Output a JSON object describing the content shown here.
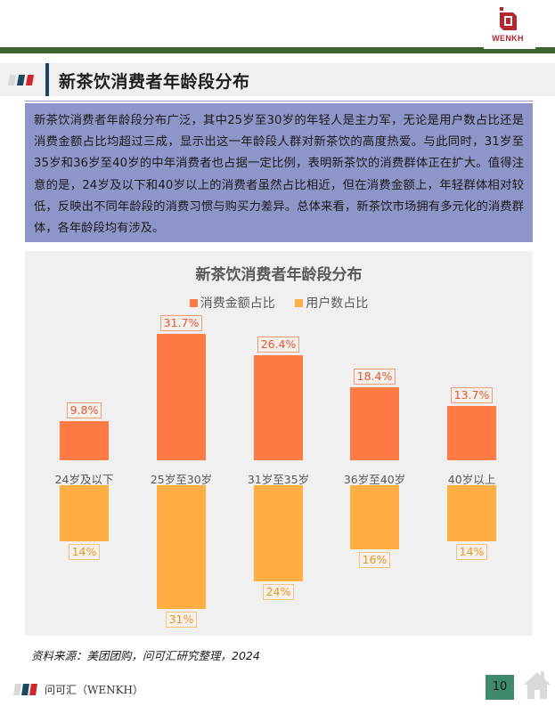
{
  "header": {
    "logo_text": "WENKH",
    "page_title": "新茶饮消费者年龄段分布"
  },
  "summary": {
    "text": "新茶饮消费者年龄段分布广泛，其中25岁至30岁的年轻人是主力军，无论是用户数占比还是消费金额占比均超过三成，显示出这一年龄段人群对新茶饮的高度热爱。与此同时，31岁至35岁和36岁至40岁的中年消费者也占据一定比例，表明新茶饮的消费群体正在扩大。值得注意的是，24岁及以下和40岁以上的消费者虽然占比相近，但在消费金额上，年轻群体相对较低，反映出不同年龄段的消费习惯与购买力差异。总体来看，新茶饮市场拥有多元化的消费群体，各年龄段均有涉及。"
  },
  "colors": {
    "spend": "#ff7a45",
    "users": "#ffae42",
    "header_rule": "#3d6332",
    "summary_bg": "#8e95c8",
    "page_badge": "#3f8a6a"
  },
  "chart_data": {
    "type": "bar",
    "title": "新茶饮消费者年龄段分布",
    "categories": [
      "24岁及以下",
      "25岁至30岁",
      "31岁至35岁",
      "36岁至40岁",
      "40岁以上"
    ],
    "series": [
      {
        "name": "消费金额占比",
        "values": [
          9.8,
          31.7,
          26.4,
          18.4,
          13.7
        ],
        "labels": [
          "9.8%",
          "31.7%",
          "26.4%",
          "18.4%",
          "13.7%"
        ],
        "direction": "up"
      },
      {
        "name": "用户数占比",
        "values": [
          14,
          31,
          24,
          16,
          14
        ],
        "labels": [
          "14%",
          "31%",
          "24%",
          "16%",
          "14%"
        ],
        "direction": "down"
      }
    ],
    "legend_position": "top",
    "grid": false,
    "xlabel": "",
    "ylabel": "",
    "ylim": [
      0,
      35
    ]
  },
  "source": "资料来源：美团团购，问可汇研究整理，2024",
  "footer": {
    "brand": "问可汇（WENKH）",
    "page_number": "10"
  }
}
